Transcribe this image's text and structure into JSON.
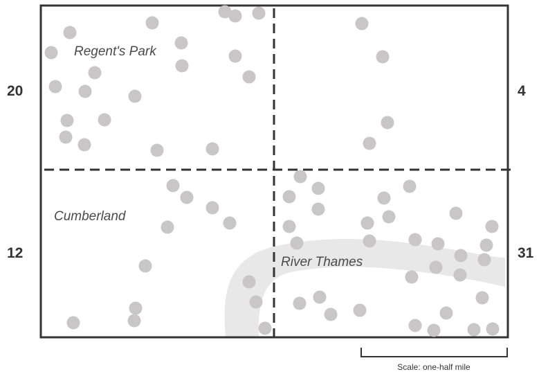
{
  "labels": {
    "regents_park": "Regent's Park",
    "cumberland": "Cumberland",
    "river_thames": "River Thames",
    "scale": "Scale: one-half mile"
  },
  "quadrant_counts": {
    "top_left": "20",
    "top_right": "4",
    "bottom_left": "12",
    "bottom_right": "31"
  },
  "colors": {
    "point": "#c8c6c6",
    "river": "#e8e8e8",
    "frame": "#333333"
  }
}
